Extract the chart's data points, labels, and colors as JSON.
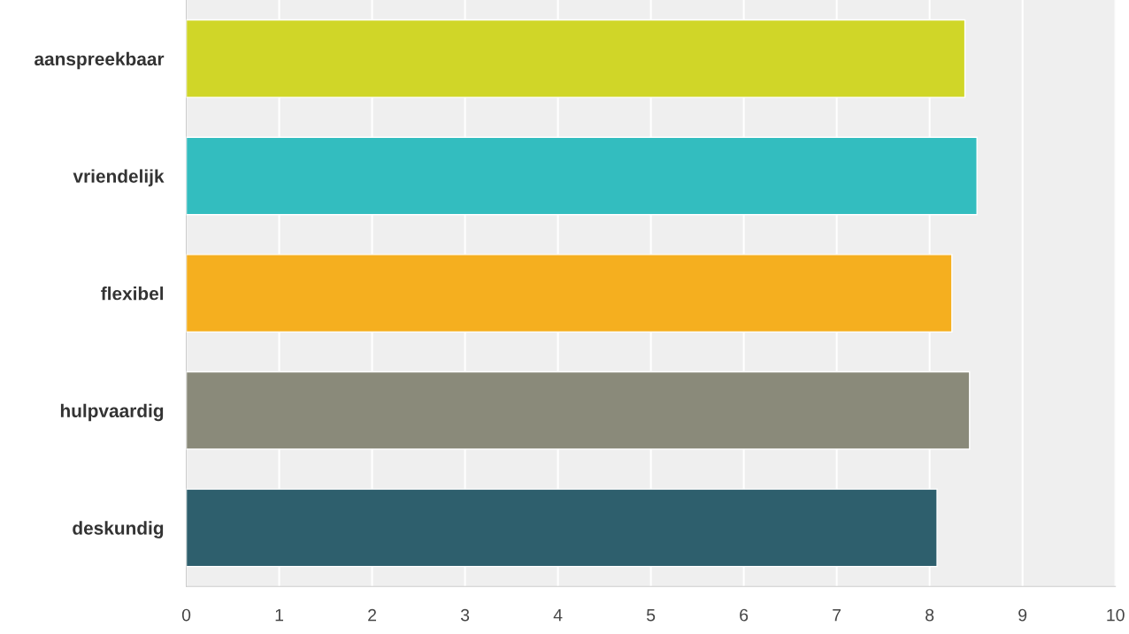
{
  "chart_data": {
    "type": "bar",
    "orientation": "horizontal",
    "categories": [
      "aanspreekbaar",
      "vriendelijk",
      "flexibel",
      "hulpvaardig",
      "deskundig"
    ],
    "values": [
      8.38,
      8.51,
      8.24,
      8.43,
      8.08
    ],
    "colors": [
      "#d0d628",
      "#33bdbf",
      "#f5af1f",
      "#8a8a7a",
      "#2e5f6d"
    ],
    "xlim": [
      0,
      10
    ],
    "xticks": [
      0,
      1,
      2,
      3,
      4,
      5,
      6,
      7,
      8,
      9,
      10
    ],
    "grid": "x"
  }
}
